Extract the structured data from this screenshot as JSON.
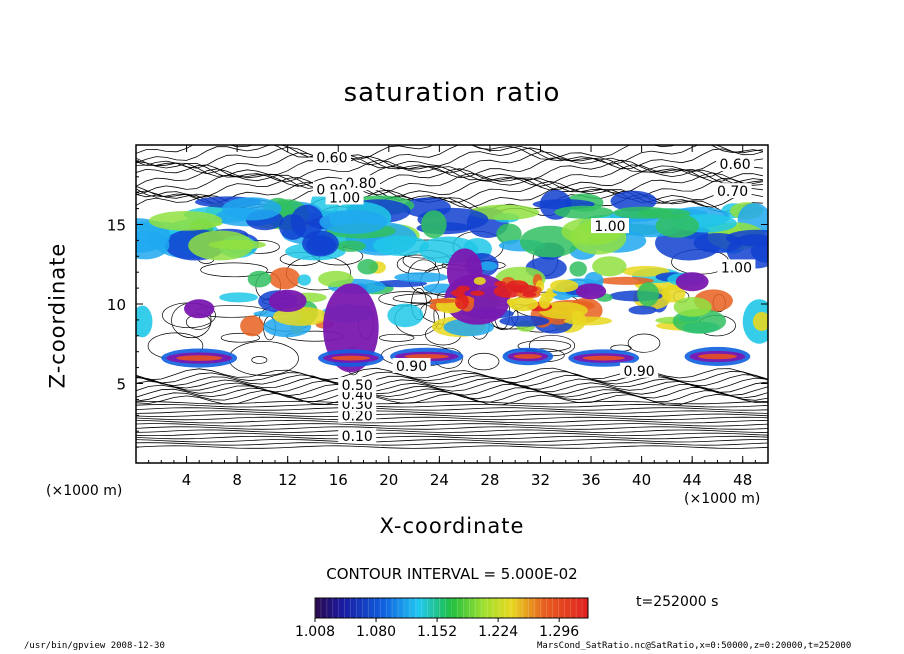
{
  "chart_data": {
    "type": "heatmap",
    "title": "saturation ratio",
    "xlabel": "X-coordinate",
    "ylabel": "Z-coordinate",
    "x_unit_label": "(×1000 m)",
    "z_unit_label": "(×1000 m)",
    "xlim": [
      0,
      50
    ],
    "ylim": [
      0,
      20
    ],
    "x_ticks": [
      "4",
      "8",
      "12",
      "16",
      "20",
      "24",
      "28",
      "32",
      "36",
      "40",
      "44",
      "48"
    ],
    "y_ticks": [
      "5",
      "10",
      "15"
    ],
    "contour_interval_text": "CONTOUR INTERVAL = 5.000E-02",
    "colorbar": {
      "tick_labels": [
        "1.008",
        "1.080",
        "1.152",
        "1.224",
        "1.296"
      ],
      "min": 1.008,
      "max": 1.33
    },
    "contour_labels": [
      {
        "text": "0.10",
        "x": 17.5,
        "z": 1.7
      },
      {
        "text": "0.20",
        "x": 17.5,
        "z": 3.0
      },
      {
        "text": "0.30",
        "x": 17.5,
        "z": 3.7
      },
      {
        "text": "0.40",
        "x": 17.5,
        "z": 4.3
      },
      {
        "text": "0.50",
        "x": 17.5,
        "z": 4.9
      },
      {
        "text": "0.60",
        "x": 15.5,
        "z": 19.2
      },
      {
        "text": "0.80",
        "x": 17.8,
        "z": 17.6
      },
      {
        "text": "0.90",
        "x": 15.5,
        "z": 17.2
      },
      {
        "text": "1.00",
        "x": 16.5,
        "z": 16.7
      },
      {
        "text": "0.60",
        "x": 47.4,
        "z": 18.8
      },
      {
        "text": "0.70",
        "x": 47.2,
        "z": 17.1
      },
      {
        "text": "1.00",
        "x": 37.5,
        "z": 14.9
      },
      {
        "text": "1.00",
        "x": 47.5,
        "z": 12.3
      },
      {
        "text": "0.90",
        "x": 21.8,
        "z": 6.1
      },
      {
        "text": "0.90",
        "x": 39.8,
        "z": 5.8
      }
    ],
    "time_label": "t=252000 s"
  },
  "footer": {
    "left": "/usr/bin/gpview   2008-12-30",
    "right": "MarsCond_SatRatio.nc@SatRatio,x=0:50000,z=0:20000,t=252000"
  }
}
